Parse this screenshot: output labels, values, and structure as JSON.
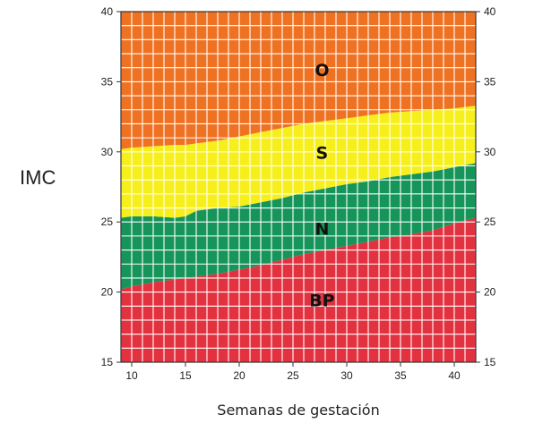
{
  "chart_data": {
    "type": "area",
    "title": "",
    "xlabel": "Semanas de gestación",
    "ylabel": "IMC",
    "xlim": [
      9,
      42
    ],
    "ylim": [
      15,
      40
    ],
    "x_ticks": [
      10,
      15,
      20,
      25,
      30,
      35,
      40
    ],
    "y_ticks": [
      15,
      20,
      25,
      30,
      35,
      40
    ],
    "grid": true,
    "x": [
      9,
      10,
      12,
      14,
      15,
      16,
      18,
      20,
      22,
      24,
      26,
      28,
      30,
      32,
      34,
      36,
      38,
      40,
      42
    ],
    "boundaries": [
      {
        "name": "BP/N",
        "values": [
          20.2,
          20.4,
          20.7,
          20.9,
          21.0,
          21.1,
          21.3,
          21.6,
          21.9,
          22.3,
          22.7,
          23.0,
          23.3,
          23.6,
          23.9,
          24.1,
          24.4,
          24.9,
          25.3
        ]
      },
      {
        "name": "N/S",
        "values": [
          25.3,
          25.4,
          25.4,
          25.3,
          25.4,
          25.8,
          26.0,
          26.1,
          26.4,
          26.7,
          27.1,
          27.4,
          27.7,
          27.9,
          28.2,
          28.4,
          28.6,
          28.9,
          29.2
        ]
      },
      {
        "name": "S/O",
        "values": [
          30.2,
          30.3,
          30.4,
          30.5,
          30.5,
          30.6,
          30.8,
          31.1,
          31.4,
          31.7,
          32.0,
          32.2,
          32.4,
          32.6,
          32.8,
          32.9,
          33.0,
          33.1,
          33.3
        ]
      }
    ],
    "zones": [
      {
        "label": "BP",
        "color": "#e3323f",
        "x": 27.7,
        "y": 19.0
      },
      {
        "label": "N",
        "color": "#16955a",
        "x": 27.7,
        "y": 24.1
      },
      {
        "label": "S",
        "color": "#f6ef1c",
        "x": 27.7,
        "y": 29.5
      },
      {
        "label": "O",
        "color": "#ef7222",
        "x": 27.7,
        "y": 35.4
      }
    ]
  }
}
